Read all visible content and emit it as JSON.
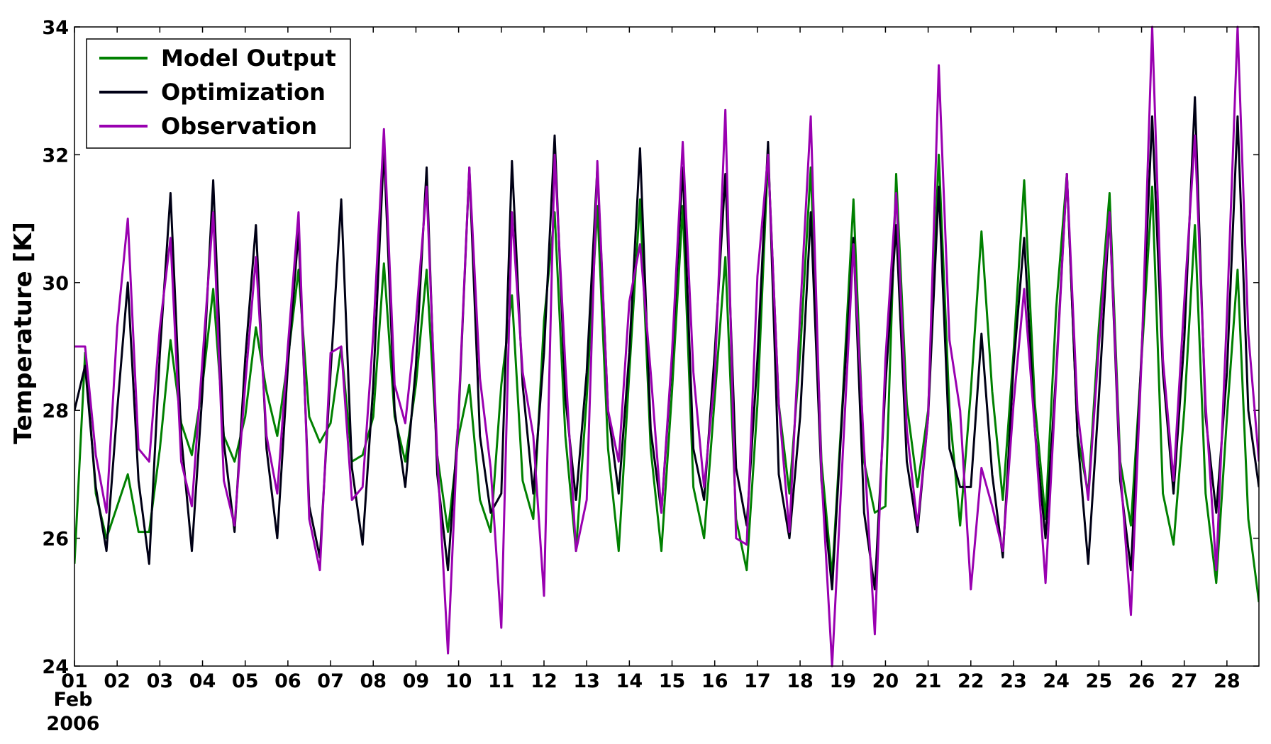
{
  "chart_data": {
    "type": "line",
    "ylabel": "Temperature [K]",
    "xlabel": "",
    "ylim": [
      24,
      34
    ],
    "yticks": [
      24,
      26,
      28,
      30,
      32,
      34
    ],
    "x_unit": "days from 01 Feb 2006 (6-hourly samples)",
    "xlim_days": [
      0,
      27.75
    ],
    "xtick_labels": [
      "01",
      "02",
      "03",
      "04",
      "05",
      "06",
      "07",
      "08",
      "09",
      "10",
      "11",
      "12",
      "13",
      "14",
      "15",
      "16",
      "17",
      "18",
      "19",
      "20",
      "21",
      "22",
      "23",
      "24",
      "25",
      "26",
      "27",
      "28"
    ],
    "x_month_label": "Feb",
    "x_year_label": "2006",
    "legend_position": "upper-left",
    "grid": false,
    "series": [
      {
        "name": "Model Output",
        "color": "#008000",
        "values": [
          25.6,
          28.9,
          26.7,
          26.0,
          26.5,
          27.0,
          26.1,
          26.1,
          27.4,
          29.1,
          27.8,
          27.3,
          28.4,
          29.9,
          27.6,
          27.2,
          27.9,
          29.3,
          28.3,
          27.6,
          28.8,
          30.2,
          27.9,
          27.5,
          27.8,
          29.0,
          27.2,
          27.3,
          27.9,
          30.3,
          27.9,
          27.2,
          28.4,
          30.2,
          27.3,
          26.1,
          27.6,
          28.4,
          26.6,
          26.1,
          28.4,
          29.8,
          26.9,
          26.3,
          29.4,
          31.1,
          27.6,
          25.8,
          28.2,
          31.2,
          27.4,
          25.8,
          28.6,
          31.3,
          27.4,
          25.8,
          28.3,
          31.2,
          26.8,
          26.0,
          28.2,
          30.4,
          26.3,
          25.5,
          28.1,
          32.0,
          28.1,
          26.7,
          28.9,
          31.8,
          27.2,
          25.4,
          28.2,
          31.3,
          27.2,
          26.4,
          26.5,
          31.7,
          28.1,
          26.8,
          28.0,
          32.0,
          28.0,
          26.2,
          28.3,
          30.8,
          28.3,
          26.6,
          28.9,
          31.6,
          28.1,
          26.3,
          29.6,
          31.7,
          27.6,
          26.7,
          29.3,
          31.4,
          27.2,
          26.2,
          28.8,
          31.5,
          26.7,
          25.9,
          28.0,
          30.9,
          26.7,
          25.3,
          27.9,
          30.2,
          26.3,
          25.0
        ]
      },
      {
        "name": "Optimization",
        "color": "#000015",
        "values": [
          28.0,
          28.7,
          26.8,
          25.8,
          28.0,
          30.0,
          26.9,
          25.6,
          28.9,
          31.4,
          27.6,
          25.8,
          28.3,
          31.6,
          27.5,
          26.1,
          28.8,
          30.9,
          27.4,
          26.0,
          28.7,
          30.8,
          26.5,
          25.7,
          28.6,
          31.3,
          27.1,
          25.9,
          28.4,
          32.1,
          28.0,
          26.8,
          28.7,
          31.8,
          27.0,
          25.5,
          27.9,
          31.8,
          27.6,
          26.4,
          26.7,
          31.9,
          28.4,
          26.7,
          28.9,
          32.3,
          28.2,
          26.6,
          28.6,
          31.8,
          28.0,
          26.7,
          28.9,
          32.1,
          27.7,
          26.4,
          28.8,
          31.8,
          27.4,
          26.6,
          28.9,
          31.7,
          27.1,
          26.2,
          28.8,
          32.2,
          27.0,
          26.0,
          27.9,
          31.1,
          26.9,
          25.2,
          28.1,
          30.7,
          26.4,
          25.2,
          28.4,
          30.9,
          27.2,
          26.1,
          27.9,
          31.5,
          27.4,
          26.8,
          26.8,
          29.2,
          27.0,
          25.7,
          28.7,
          30.7,
          27.7,
          26.0,
          28.6,
          31.7,
          27.6,
          25.6,
          28.2,
          31.1,
          26.9,
          25.5,
          28.9,
          32.6,
          28.6,
          26.7,
          29.1,
          32.9,
          27.9,
          26.4,
          28.6,
          32.6,
          28.0,
          26.8
        ]
      },
      {
        "name": "Observation",
        "color": "#9900B0",
        "values": [
          29.0,
          29.0,
          27.3,
          26.4,
          29.3,
          31.0,
          27.4,
          27.2,
          29.3,
          30.7,
          27.2,
          26.5,
          28.8,
          31.1,
          26.9,
          26.2,
          28.4,
          30.4,
          27.6,
          26.7,
          29.0,
          31.1,
          26.3,
          25.5,
          28.9,
          29.0,
          26.6,
          26.8,
          29.2,
          32.4,
          28.4,
          27.8,
          29.4,
          31.5,
          27.3,
          24.2,
          28.0,
          31.8,
          28.5,
          27.1,
          24.6,
          31.1,
          28.6,
          27.6,
          25.1,
          32.0,
          28.7,
          25.8,
          26.6,
          31.9,
          28.0,
          27.2,
          29.7,
          30.6,
          28.6,
          26.4,
          28.9,
          32.2,
          28.6,
          26.8,
          28.5,
          32.7,
          26.0,
          25.9,
          30.1,
          32.0,
          28.1,
          26.1,
          29.5,
          32.6,
          27.0,
          24.0,
          27.3,
          30.6,
          27.4,
          24.5,
          28.8,
          31.4,
          27.7,
          26.2,
          27.9,
          33.4,
          29.1,
          28.0,
          25.2,
          27.1,
          26.5,
          25.8,
          28.1,
          29.9,
          27.7,
          25.3,
          28.5,
          31.7,
          28.0,
          26.6,
          29.0,
          31.1,
          27.1,
          24.8,
          28.8,
          34.0,
          28.8,
          26.9,
          29.7,
          32.3,
          28.1,
          25.5,
          29.5,
          34.0,
          29.2,
          27.2
        ]
      }
    ]
  }
}
